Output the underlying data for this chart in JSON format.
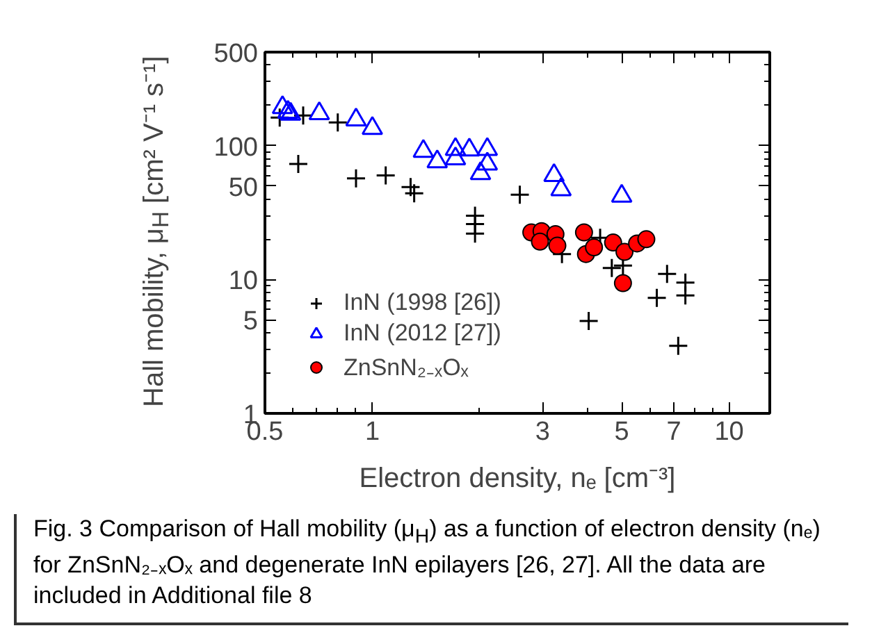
{
  "chart_data": {
    "type": "scatter",
    "xlabel": "Electron density, nₑ [cm⁻³]",
    "ylabel": "Hall mobility, μ$_{H}$ [cm² V⁻¹ s⁻¹]",
    "log": "xy",
    "grid": false,
    "legend": "bottom left",
    "xlim": [
      0.5,
      13
    ],
    "xticks": [
      0.5,
      1,
      3,
      5,
      7,
      10
    ],
    "ylim": [
      1,
      500
    ],
    "yticks": [
      1,
      5,
      10,
      50,
      100,
      500
    ],
    "annotations": [
      "Fig. 3 Comparison of Hall mobility (μ$_{H}$) as a function of electron density (nₑ) for ZnSnN₂₋ₓOₓ and degenerate InN epilayers [26, 27]. All the data are included in Additional file 8"
    ],
    "series": [
      {
        "name": "InN (1998 [26])",
        "color": "#000000",
        "marker": "cross",
        "x": [
          0.55,
          0.64,
          0.62,
          0.8,
          0.9,
          1.09,
          1.28,
          1.31,
          1.94,
          1.94,
          1.94,
          2.59,
          3.4,
          4.35,
          4.69,
          5.04,
          4.04,
          6.7,
          6.27,
          7.54,
          7.54,
          7.2
        ],
        "values": [
          162,
          168,
          73,
          149,
          57,
          60,
          49,
          44,
          30,
          26,
          22,
          43,
          15.5,
          20.5,
          12.2,
          12.7,
          4.9,
          11.0,
          7.3,
          9.5,
          7.6,
          3.2
        ]
      },
      {
        "name": "InN (2012 [27])",
        "color": "#0000ff",
        "marker": "triangle",
        "x": [
          0.56,
          0.58,
          0.59,
          0.71,
          0.9,
          1.0,
          1.39,
          1.52,
          1.71,
          1.71,
          1.87,
          2.1,
          2.1,
          2.01,
          3.23,
          3.38,
          5.0
        ],
        "values": [
          193,
          178,
          172,
          174,
          156,
          135,
          91,
          76,
          94,
          80,
          93,
          94,
          73,
          62,
          60,
          47,
          42
        ]
      },
      {
        "name": "ZnSnN₂₋ₓOₓ",
        "color": "#ff0000",
        "marker": "circle",
        "x": [
          2.79,
          2.98,
          2.95,
          3.26,
          3.3,
          3.92,
          3.97,
          4.18,
          4.73,
          5.09,
          5.52,
          5.86,
          5.04
        ],
        "values": [
          22.5,
          23,
          19.2,
          21.8,
          17.9,
          22.5,
          15.5,
          17.4,
          18.9,
          16.1,
          18.6,
          20,
          9.4
        ]
      }
    ]
  }
}
